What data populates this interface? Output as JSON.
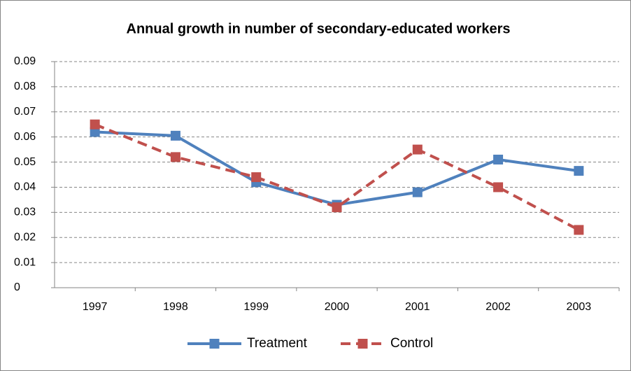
{
  "chart_data": {
    "type": "line",
    "title": "Annual growth in number of secondary-educated workers",
    "categories": [
      "1997",
      "1998",
      "1999",
      "2000",
      "2001",
      "2002",
      "2003"
    ],
    "series": [
      {
        "name": "Treatment",
        "color": "#4f81bd",
        "line_style": "solid",
        "marker": "square",
        "values": [
          0.062,
          0.0605,
          0.042,
          0.033,
          0.038,
          0.051,
          0.0465
        ]
      },
      {
        "name": "Control",
        "color": "#c0504d",
        "line_style": "dashed",
        "marker": "square",
        "values": [
          0.065,
          0.052,
          0.044,
          0.032,
          0.055,
          0.04,
          0.023
        ]
      }
    ],
    "ylim": [
      0,
      0.09
    ],
    "yticks": [
      0,
      0.01,
      0.02,
      0.03,
      0.04,
      0.05,
      0.06,
      0.07,
      0.08,
      0.09
    ],
    "grid": true,
    "legend": "bottom"
  }
}
